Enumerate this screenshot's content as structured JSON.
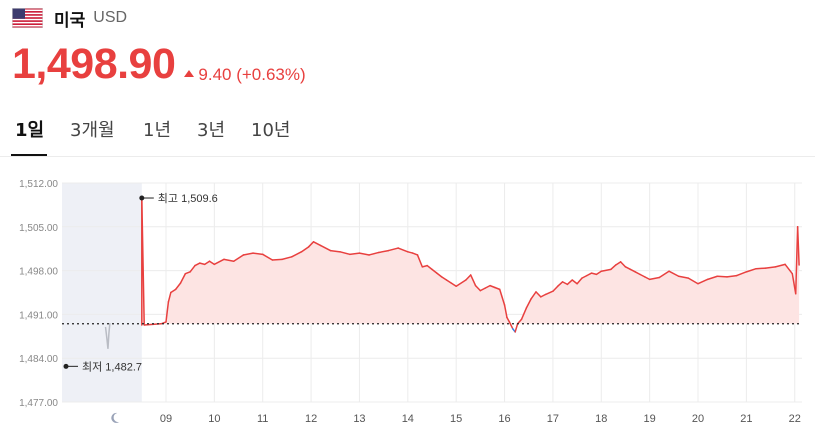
{
  "header": {
    "country": "미국",
    "currency": "USD",
    "flag_icon": "us-flag-icon"
  },
  "quote": {
    "price": "1,498.90",
    "change": "9.40 (+0.63%)",
    "direction": "up",
    "color": "#e8403f"
  },
  "tabs": [
    {
      "label": "1일",
      "active": true
    },
    {
      "label": "3개월",
      "active": false
    },
    {
      "label": "1년",
      "active": false
    },
    {
      "label": "3년",
      "active": false
    },
    {
      "label": "10년",
      "active": false
    }
  ],
  "chart_data": {
    "type": "line",
    "series": [
      {
        "color_up": "#e8403f",
        "color_down": "#2f7fe6",
        "color_premarket": "#b9bcc4",
        "fill": "#fde4e3",
        "points": [
          [
            7.75,
            1489.0
          ],
          [
            7.78,
            1487.0
          ],
          [
            7.8,
            1485.5
          ],
          [
            7.82,
            1488.0
          ],
          [
            7.84,
            1489.6
          ],
          [
            8.5,
            1489.3
          ],
          [
            8.5,
            1509.6
          ],
          [
            8.55,
            1489.3
          ],
          [
            8.9,
            1489.5
          ],
          [
            9.0,
            1489.8
          ],
          [
            9.05,
            1493.0
          ],
          [
            9.1,
            1494.5
          ],
          [
            9.2,
            1495.0
          ],
          [
            9.3,
            1496.0
          ],
          [
            9.4,
            1497.5
          ],
          [
            9.5,
            1497.8
          ],
          [
            9.6,
            1498.8
          ],
          [
            9.7,
            1499.2
          ],
          [
            9.8,
            1499.0
          ],
          [
            9.9,
            1499.5
          ],
          [
            10.0,
            1499.0
          ],
          [
            10.2,
            1499.8
          ],
          [
            10.4,
            1499.5
          ],
          [
            10.6,
            1500.5
          ],
          [
            10.8,
            1500.8
          ],
          [
            11.0,
            1500.6
          ],
          [
            11.2,
            1499.7
          ],
          [
            11.4,
            1499.8
          ],
          [
            11.6,
            1500.2
          ],
          [
            11.8,
            1501.0
          ],
          [
            11.95,
            1501.8
          ],
          [
            12.05,
            1502.6
          ],
          [
            12.2,
            1502.0
          ],
          [
            12.4,
            1501.2
          ],
          [
            12.6,
            1501.0
          ],
          [
            12.8,
            1500.6
          ],
          [
            13.0,
            1500.8
          ],
          [
            13.2,
            1500.5
          ],
          [
            13.4,
            1500.9
          ],
          [
            13.6,
            1501.2
          ],
          [
            13.8,
            1501.6
          ],
          [
            14.0,
            1501.0
          ],
          [
            14.1,
            1500.8
          ],
          [
            14.2,
            1500.5
          ],
          [
            14.3,
            1498.6
          ],
          [
            14.4,
            1498.8
          ],
          [
            14.5,
            1498.2
          ],
          [
            14.6,
            1497.6
          ],
          [
            14.7,
            1497.0
          ],
          [
            14.8,
            1496.5
          ],
          [
            14.9,
            1496.0
          ],
          [
            15.0,
            1495.5
          ],
          [
            15.2,
            1496.5
          ],
          [
            15.3,
            1497.3
          ],
          [
            15.4,
            1495.6
          ],
          [
            15.5,
            1494.8
          ],
          [
            15.6,
            1495.2
          ],
          [
            15.7,
            1495.6
          ],
          [
            15.8,
            1495.3
          ],
          [
            15.9,
            1495.0
          ],
          [
            16.0,
            1492.5
          ],
          [
            16.05,
            1490.5
          ],
          [
            16.1,
            1489.8
          ],
          [
            16.17,
            1488.7
          ],
          [
            16.22,
            1488.2
          ],
          [
            16.27,
            1489.5
          ],
          [
            16.35,
            1490.2
          ],
          [
            16.45,
            1492.0
          ],
          [
            16.55,
            1493.5
          ],
          [
            16.65,
            1494.6
          ],
          [
            16.75,
            1493.8
          ],
          [
            16.85,
            1494.2
          ],
          [
            17.0,
            1494.7
          ],
          [
            17.1,
            1495.5
          ],
          [
            17.2,
            1496.2
          ],
          [
            17.3,
            1495.8
          ],
          [
            17.4,
            1496.5
          ],
          [
            17.5,
            1495.9
          ],
          [
            17.6,
            1496.8
          ],
          [
            17.7,
            1497.2
          ],
          [
            17.8,
            1497.6
          ],
          [
            17.9,
            1497.4
          ],
          [
            18.0,
            1497.9
          ],
          [
            18.2,
            1498.2
          ],
          [
            18.3,
            1498.9
          ],
          [
            18.4,
            1499.4
          ],
          [
            18.5,
            1498.6
          ],
          [
            18.6,
            1498.2
          ],
          [
            18.7,
            1497.8
          ],
          [
            18.8,
            1497.4
          ],
          [
            18.9,
            1497.0
          ],
          [
            19.0,
            1496.6
          ],
          [
            19.2,
            1496.9
          ],
          [
            19.4,
            1497.9
          ],
          [
            19.6,
            1497.1
          ],
          [
            19.8,
            1496.8
          ],
          [
            20.0,
            1495.9
          ],
          [
            20.2,
            1496.6
          ],
          [
            20.4,
            1497.1
          ],
          [
            20.6,
            1497.0
          ],
          [
            20.8,
            1497.2
          ],
          [
            21.0,
            1497.8
          ],
          [
            21.2,
            1498.3
          ],
          [
            21.4,
            1498.4
          ],
          [
            21.6,
            1498.6
          ],
          [
            21.8,
            1499.0
          ],
          [
            21.95,
            1497.5
          ],
          [
            22.02,
            1494.3
          ],
          [
            22.06,
            1505.0
          ],
          [
            22.09,
            1498.9
          ]
        ]
      }
    ],
    "reference_value": 1489.5,
    "xlim": [
      6.85,
      22.15
    ],
    "ylim": [
      1477.0,
      1512.0
    ],
    "yticks": [
      {
        "v": 1512.0,
        "label": "1,512.00"
      },
      {
        "v": 1505.0,
        "label": "1,505.00"
      },
      {
        "v": 1498.0,
        "label": "1,498.00"
      },
      {
        "v": 1491.0,
        "label": "1,491.00"
      },
      {
        "v": 1484.0,
        "label": "1,484.00"
      },
      {
        "v": 1477.0,
        "label": "1,477.00"
      }
    ],
    "xticks": [
      {
        "v": 9,
        "label": "09"
      },
      {
        "v": 10,
        "label": "10"
      },
      {
        "v": 11,
        "label": "11"
      },
      {
        "v": 12,
        "label": "12"
      },
      {
        "v": 13,
        "label": "13"
      },
      {
        "v": 14,
        "label": "14"
      },
      {
        "v": 15,
        "label": "15"
      },
      {
        "v": 16,
        "label": "16"
      },
      {
        "v": 17,
        "label": "17"
      },
      {
        "v": 18,
        "label": "18"
      },
      {
        "v": 19,
        "label": "19"
      },
      {
        "v": 20,
        "label": "20"
      },
      {
        "v": 21,
        "label": "21"
      },
      {
        "v": 22,
        "label": "22"
      }
    ],
    "premarket_band": [
      6.85,
      8.5
    ],
    "night_icon_x": 7.95,
    "night_icon": "moon-icon",
    "high": {
      "label": "최고 1,509.6",
      "x": 8.5,
      "y": 1509.6
    },
    "low": {
      "label": "최저 1,482.7",
      "x": 6.85,
      "y": 1482.7
    },
    "grid": true
  }
}
